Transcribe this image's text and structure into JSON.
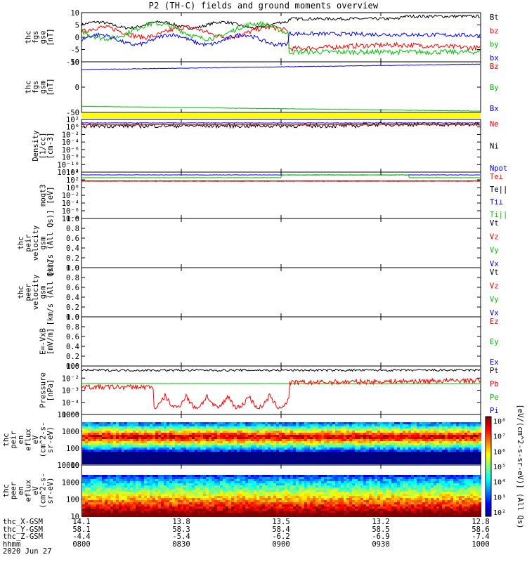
{
  "title": "P2 (TH-C) fields and ground moments overview",
  "colors": {
    "black": "#000000",
    "red": "#ff0000",
    "green": "#00c000",
    "blue": "#0000ff",
    "yellow": "#ffff00"
  },
  "panels": [
    {
      "id": "fgs",
      "ylabel": [
        "thc",
        "fgs",
        "gse",
        "[nT]"
      ],
      "ticks": [
        "10",
        "5",
        "0",
        "-5",
        "-10"
      ],
      "ylim": [
        -10,
        10
      ],
      "legend": [
        {
          "text": "Bt",
          "color": "black"
        },
        {
          "text": "bz",
          "color": "red"
        },
        {
          "text": "by",
          "color": "green"
        },
        {
          "text": "bx",
          "color": "blue"
        }
      ]
    },
    {
      "id": "fgs_gsm",
      "ylabel": [
        "thc",
        "fgs",
        "gsm",
        "[nT]"
      ],
      "ticks": [
        "50",
        "0",
        "-50"
      ],
      "ylim": [
        -75,
        75
      ],
      "legend": [
        {
          "text": "Bz",
          "color": "red"
        },
        {
          "text": "By",
          "color": "green"
        },
        {
          "text": "Bx",
          "color": "blue"
        }
      ]
    },
    {
      "id": "density",
      "ylabel": [
        "Density",
        "[1/cc]",
        "[cm-3]"
      ],
      "ticks": [
        "10²",
        "10⁰",
        "10⁻²",
        "10⁻⁴",
        "10⁻⁶",
        "10⁻⁸",
        "10⁻¹⁰",
        "10⁻¹²"
      ],
      "legend": [
        {
          "text": "Ne",
          "color": "red"
        },
        {
          "text": "Ni",
          "color": "black"
        },
        {
          "text": "Npot",
          "color": "blue"
        }
      ]
    },
    {
      "id": "temp",
      "ylabel": [
        "moqt3",
        "[eV]"
      ],
      "ticks": [
        "10⁴",
        "10²",
        "10⁰",
        "10⁻²",
        "10⁻⁴",
        "10⁻⁶",
        "10⁻⁸"
      ],
      "legend": [
        {
          "text": "Te⊥",
          "color": "red"
        },
        {
          "text": "Te||",
          "color": "black"
        },
        {
          "text": "Ti⊥",
          "color": "blue"
        },
        {
          "text": "Ti||",
          "color": "green"
        }
      ]
    },
    {
      "id": "peir_vel",
      "ylabel": [
        "thc",
        "peir",
        "velocity",
        "gsm",
        "[km/s (All Qs)]"
      ],
      "ticks": [
        "1.0",
        "0.8",
        "0.6",
        "0.4",
        "0.2",
        "0.0"
      ],
      "ylim": [
        0,
        1
      ],
      "legend": [
        {
          "text": "Vt",
          "color": "black"
        },
        {
          "text": "Vz",
          "color": "red"
        },
        {
          "text": "Vy",
          "color": "green"
        },
        {
          "text": "Vx",
          "color": "blue"
        }
      ]
    },
    {
      "id": "peer_vel",
      "ylabel": [
        "thc",
        "peer",
        "velocity",
        "gsm",
        "[km/s (All Qs)]"
      ],
      "ticks": [
        "1.0",
        "0.8",
        "0.6",
        "0.4",
        "0.2",
        "0.0"
      ],
      "ylim": [
        0,
        1
      ],
      "legend": [
        {
          "text": "Vt",
          "color": "black"
        },
        {
          "text": "Vz",
          "color": "red"
        },
        {
          "text": "Vy",
          "color": "green"
        },
        {
          "text": "Vx",
          "color": "blue"
        }
      ]
    },
    {
      "id": "efield",
      "ylabel": [
        "E=-VxB",
        "[mV/m]"
      ],
      "ticks": [
        "1.0",
        "0.8",
        "0.6",
        "0.4",
        "0.2",
        "0.0"
      ],
      "ylim": [
        0,
        1
      ],
      "legend": [
        {
          "text": "Ez",
          "color": "red"
        },
        {
          "text": "Ey",
          "color": "green"
        },
        {
          "text": "Ex",
          "color": "blue"
        }
      ]
    },
    {
      "id": "pressure",
      "ylabel": [
        "Pressure",
        "[nPa]"
      ],
      "ticks": [
        "10⁰",
        "10⁻²",
        "10⁻³",
        "10⁻⁴",
        "10⁻⁵"
      ],
      "legend": [
        {
          "text": "Pt",
          "color": "black"
        },
        {
          "text": "Pb",
          "color": "red"
        },
        {
          "text": "Pe",
          "color": "green"
        },
        {
          "text": "Pi",
          "color": "blue"
        }
      ]
    },
    {
      "id": "peir_spec",
      "ylabel": [
        "thc",
        "peir",
        "en",
        "eflux",
        "eV",
        "(cm^2-s-",
        "sr-eV)"
      ],
      "ticks": [
        "10000",
        "1000",
        "100",
        "10"
      ],
      "legend": []
    },
    {
      "id": "peer_spec",
      "ylabel": [
        "thc",
        "peer",
        "en",
        "eflux",
        "eV",
        "(cm^2-s-",
        "sr-eV)"
      ],
      "ticks": [
        "10000",
        "1000",
        "100",
        "10"
      ],
      "legend": []
    }
  ],
  "colorbar": {
    "label": "[eV/(cm^2-s-sr-eV)] (All Qs)",
    "ticks": [
      "10⁸",
      "10⁷",
      "10⁶",
      "10⁵",
      "10⁴",
      "10³",
      "10²"
    ]
  },
  "time_axis": {
    "rows": [
      {
        "label": "thc_X-GSM",
        "values": [
          "14.1",
          "13.8",
          "13.5",
          "13.2",
          "12.8"
        ]
      },
      {
        "label": "thc_Y-GSM",
        "values": [
          "58.1",
          "58.3",
          "58.4",
          "58.5",
          "58.6"
        ]
      },
      {
        "label": "thc_Z-GSM",
        "values": [
          "-4.4",
          "-5.4",
          "-6.2",
          "-6.9",
          "-7.4"
        ]
      },
      {
        "label": "hhmm",
        "values": [
          "0800",
          "0830",
          "0900",
          "0930",
          "1000"
        ]
      }
    ],
    "date": "2020 Jun 27"
  },
  "chart_data": {
    "type": "line",
    "title": "P2 (TH-C) fields and ground moments overview",
    "x": [
      "0800",
      "0830",
      "0900",
      "0930",
      "1000"
    ],
    "xlabel": "hhmm",
    "series": [
      {
        "name": "Bt",
        "values": [
          6,
          6.5,
          6,
          8,
          8.5
        ]
      },
      {
        "name": "bz",
        "values": [
          2,
          1,
          2,
          -4.5,
          -3
        ]
      },
      {
        "name": "by",
        "values": [
          3,
          -2,
          -1,
          -6,
          -6
        ]
      },
      {
        "name": "bx",
        "values": [
          -1,
          0,
          -1,
          1.5,
          1
        ]
      }
    ]
  }
}
